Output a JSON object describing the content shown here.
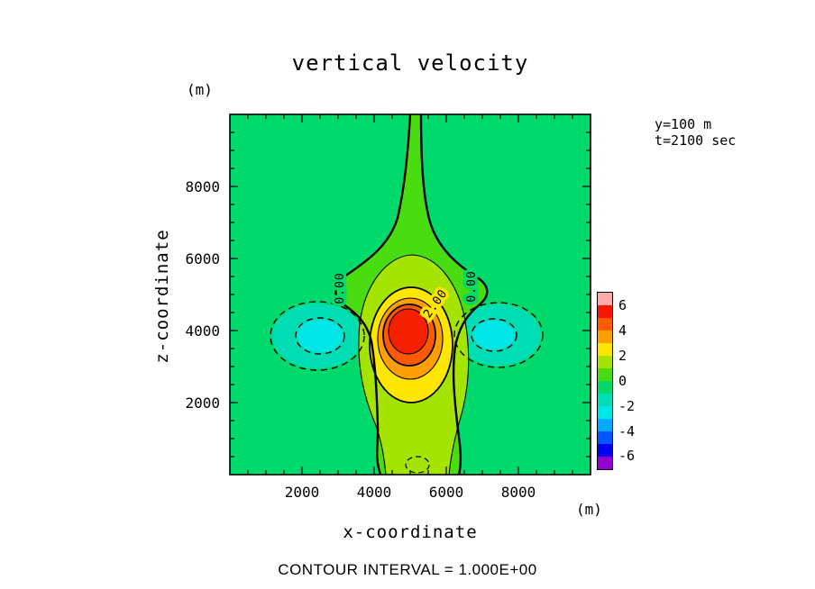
{
  "title": "vertical velocity",
  "annotations": {
    "slice": "y=100 m",
    "time": "t=2100 sec"
  },
  "axes": {
    "x": {
      "label": "x-coordinate",
      "unit": "(m)",
      "ticks": [
        "2000",
        "4000",
        "6000",
        "8000"
      ]
    },
    "y": {
      "label": "z-coordinate",
      "unit": "(m)",
      "ticks": [
        "8000",
        "6000",
        "4000",
        "2000"
      ]
    }
  },
  "footer": {
    "contour_interval": "CONTOUR INTERVAL = 1.000E+00"
  },
  "colorbar": {
    "labels": [
      "6",
      "4",
      "2",
      "0",
      "-2",
      "-4",
      "-6"
    ]
  },
  "contour_labels": {
    "zero_left": "0.00",
    "two": "2.00",
    "zero_right": "0.00"
  },
  "palette": {
    "background": "#00D96C",
    "band0": "#49DC10",
    "band1": "#A4E400",
    "band2": "#FFE600",
    "band3": "#FF9E00",
    "band4": "#FF5A00",
    "band5": "#F52000",
    "neg1": "#00DCB4",
    "neg2": "#00E6E6",
    "frame": "#000000"
  },
  "chart_data": {
    "type": "heatmap",
    "subtype": "filled-contour",
    "title": "vertical velocity",
    "xlabel": "x-coordinate",
    "ylabel": "z-coordinate",
    "units": "m",
    "xlim": [
      0,
      10000
    ],
    "ylim": [
      0,
      10000
    ],
    "x_ticks": [
      2000,
      4000,
      6000,
      8000
    ],
    "y_ticks": [
      2000,
      4000,
      6000,
      8000
    ],
    "minor_tick_spacing": 500,
    "slice_annotations": [
      "y=100 m",
      "t=2100 sec"
    ],
    "contour_interval": 1.0,
    "labeled_contours": [
      0.0,
      2.0
    ],
    "line_styles": {
      "zero": "thick solid",
      "positive": "solid",
      "negative": "dashed"
    },
    "colorbar_ticks": [
      6,
      4,
      2,
      0,
      -2,
      -4,
      -6
    ],
    "colorbar_range": [
      -7,
      7
    ],
    "colorbar_colors_top_to_bottom": [
      "#FFAAAA",
      "#F51500",
      "#FF5A00",
      "#FF9E00",
      "#FFE600",
      "#A4E400",
      "#49DC10",
      "#00D96C",
      "#00DCB4",
      "#00E6E6",
      "#00AAFF",
      "#0055FF",
      "#0000F0",
      "#9400D3"
    ],
    "features": [
      {
        "name": "updraft core",
        "x_m": 5000,
        "z_m": 3800,
        "peak_value": 6,
        "sign": "positive"
      },
      {
        "name": "left downdraft lobe",
        "x_m": 2500,
        "z_m": 3800,
        "min_value": -3,
        "sign": "negative"
      },
      {
        "name": "right downdraft lobe",
        "x_m": 7400,
        "z_m": 3800,
        "min_value": -3,
        "sign": "negative"
      },
      {
        "name": "far field",
        "value": 0,
        "sign": "near zero"
      }
    ]
  }
}
